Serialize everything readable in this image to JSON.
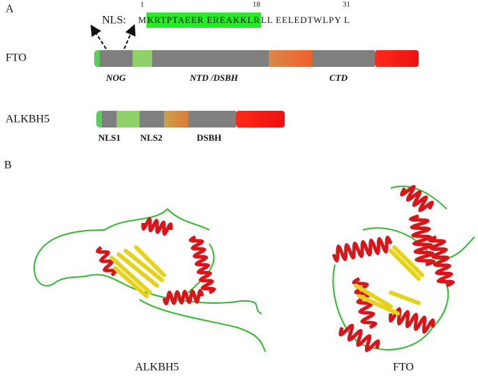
{
  "panel_a": {
    "label": "A",
    "nls": {
      "prefix": "NLS:",
      "positions": [
        1,
        18,
        31
      ],
      "seq_start": "M",
      "seq_highlight": "KRTPTAEER EREAKKLR",
      "seq_end": "LL EELEDTWLPY L"
    },
    "fto": {
      "name": "FTO",
      "domains": [
        "NOG",
        "NTD /DSBH",
        "CTD"
      ]
    },
    "alkbh5": {
      "name": "ALKBH5",
      "domains": [
        "NLS1",
        "NLS2",
        "DSBH"
      ]
    }
  },
  "panel_b": {
    "label": "B",
    "captions": [
      "ALKBH5",
      "FTO"
    ]
  }
}
